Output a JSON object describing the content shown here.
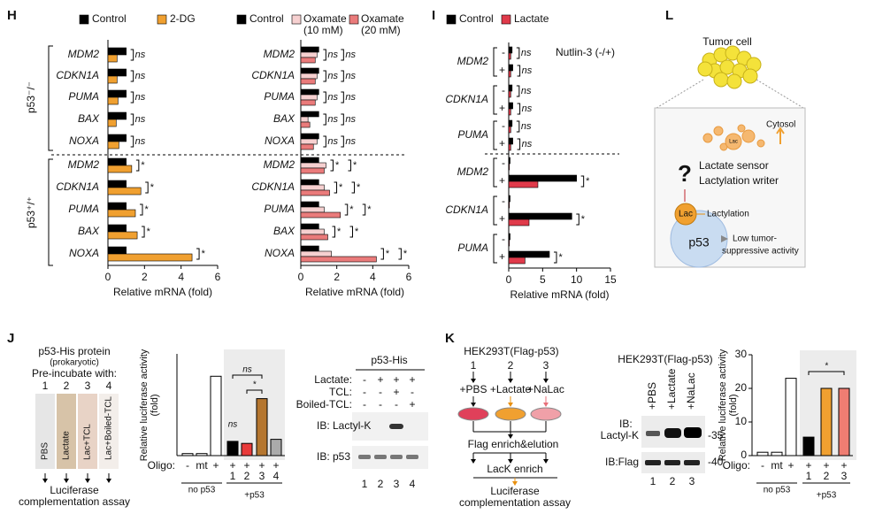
{
  "panel_labels": [
    "H",
    "I",
    "J",
    "K",
    "L"
  ],
  "chart_data": [
    {
      "type": "bar",
      "orientation": "horizontal",
      "xlabel": "Relative mRNA (fold)",
      "categories": [
        "MDM2",
        "CDKN1A",
        "PUMA",
        "BAX",
        "NOXA",
        "MDM2",
        "CDKN1A",
        "PUMA",
        "BAX",
        "NOXA"
      ],
      "groups": [
        "p53⁻/⁻",
        "p53⁺/⁺"
      ],
      "series": [
        {
          "name": "Control",
          "color": "#000000",
          "values": [
            1,
            1,
            1,
            1,
            1,
            1,
            1,
            1,
            1,
            1
          ]
        },
        {
          "name": "2-DG",
          "color": "#f0a030",
          "values": [
            0.5,
            0.5,
            0.55,
            0.45,
            0.6,
            1.3,
            1.8,
            1.5,
            1.6,
            4.6
          ]
        }
      ],
      "annotations": [
        "ns",
        "ns",
        "ns",
        "ns",
        "ns",
        "*",
        "*",
        "*",
        "*",
        "*"
      ],
      "xlim": [
        0,
        6
      ],
      "xticks": [
        0,
        2,
        4,
        6
      ]
    },
    {
      "type": "bar",
      "orientation": "horizontal",
      "xlabel": "Relative mRNA (fold)",
      "categories": [
        "MDM2",
        "CDKN1A",
        "PUMA",
        "BAX",
        "NOXA",
        "MDM2",
        "CDKN1A",
        "PUMA",
        "BAX",
        "NOXA"
      ],
      "series": [
        {
          "name": "Control",
          "color": "#000000",
          "values": [
            1,
            1,
            1,
            1,
            1,
            1,
            1,
            1,
            1,
            1
          ]
        },
        {
          "name": "Oxamate (10 mM)",
          "color": "#f6d0d0",
          "values": [
            0.9,
            0.9,
            0.9,
            0.4,
            0.9,
            1.4,
            1.3,
            1.3,
            1.3,
            1.7
          ]
        },
        {
          "name": "Oxamate (20 mM)",
          "color": "#ea7b7b",
          "values": [
            0.8,
            0.8,
            0.8,
            0.5,
            0.7,
            1.3,
            1.6,
            2.2,
            1.5,
            4.2
          ]
        }
      ],
      "annotations": [
        [
          "ns",
          "ns"
        ],
        [
          "ns",
          "ns"
        ],
        [
          "ns",
          "ns"
        ],
        [
          "ns",
          "ns"
        ],
        [
          "ns",
          "ns"
        ],
        [
          "*",
          "*"
        ],
        [
          "*",
          "*"
        ],
        [
          "*",
          "*"
        ],
        [
          "*",
          "*"
        ],
        [
          "*",
          "*"
        ]
      ],
      "xlim": [
        0,
        6
      ],
      "xticks": [
        0,
        2,
        4,
        6
      ]
    },
    {
      "type": "bar",
      "orientation": "horizontal",
      "xlabel": "Relative mRNA (fold)",
      "note": "Nutlin-3 (-/+)",
      "gene_labels": [
        "MDM2",
        "CDKN1A",
        "PUMA",
        "MDM2",
        "CDKN1A",
        "PUMA"
      ],
      "categories": [
        "-",
        "+",
        "-",
        "+",
        "-",
        "+",
        "-",
        "+",
        "-",
        "+",
        "-",
        "+"
      ],
      "series": [
        {
          "name": "Control",
          "color": "#000000",
          "values": [
            0.5,
            0.6,
            0.5,
            0.6,
            0.5,
            0.6,
            0.2,
            10,
            0.2,
            9.3,
            0.2,
            6
          ]
        },
        {
          "name": "Lactate",
          "color": "#e03a4a",
          "values": [
            0.3,
            0.3,
            0.3,
            0.3,
            0.3,
            0.3,
            0.1,
            4.3,
            0.1,
            3,
            0.1,
            2.4
          ]
        }
      ],
      "annotations": [
        "ns",
        "ns",
        "ns",
        "ns",
        "ns",
        "ns",
        null,
        "*",
        null,
        "*",
        null,
        "*"
      ],
      "xlim": [
        0,
        15
      ],
      "xticks": [
        0,
        5,
        10,
        15
      ]
    },
    {
      "type": "bar",
      "ylabel": "Relative luciferase activity (fold)",
      "category_title": "Oligo:",
      "categories": [
        "-",
        "mt",
        "+",
        "+",
        "+",
        "+",
        "+"
      ],
      "sample_labels": [
        "1",
        "2",
        "3",
        "4"
      ],
      "groups": [
        "no p53",
        "+p53"
      ],
      "values": [
        1,
        1,
        39,
        7,
        6,
        28,
        8
      ],
      "colors": [
        "#ffffff",
        "#ffffff",
        "#ffffff",
        "#000000",
        "#e83a3a",
        "#b5762f",
        "#aaaaaa"
      ],
      "annotations": [
        "ns",
        "*",
        "ns"
      ],
      "ylim": [
        0,
        50
      ]
    },
    {
      "type": "bar",
      "ylabel": "Relative luciferase activity (fold)",
      "category_title": "Oligo:",
      "categories": [
        "-",
        "mt",
        "+",
        "+",
        "+",
        "+"
      ],
      "sample_labels": [
        "1",
        "2",
        "3"
      ],
      "groups": [
        "no p53",
        "+p53"
      ],
      "values": [
        1,
        1,
        23,
        5.5,
        20,
        20
      ],
      "colors": [
        "#ffffff",
        "#ffffff",
        "#ffffff",
        "#000000",
        "#f0a030",
        "#ef7d72"
      ],
      "annotations": [
        "*"
      ],
      "ylim": [
        0,
        30
      ],
      "yticks": [
        0,
        10,
        20,
        30
      ]
    }
  ],
  "j_diagram": {
    "title": "p53-His protein",
    "subtitle": "(prokaryotic)",
    "preincubate": "Pre-incubate with:",
    "lanes": [
      "1",
      "2",
      "3",
      "4"
    ],
    "conditions": [
      "PBS",
      "Lactate",
      "Lac+TCL",
      "Lac+Boiled-TCL"
    ],
    "assay": [
      "Luciferase",
      "complementation assay"
    ]
  },
  "j_blot": {
    "header": "p53-His",
    "rows": [
      {
        "label": "Lactate:",
        "signs": [
          "-",
          "+",
          "+",
          "+"
        ]
      },
      {
        "label": "TCL:",
        "signs": [
          "-",
          "-",
          "+",
          "-"
        ]
      },
      {
        "label": "Boiled-TCL:",
        "signs": [
          "-",
          "-",
          "-",
          "+"
        ]
      }
    ],
    "blots": [
      "IB: Lactyl-K",
      "IB: p53"
    ],
    "lanes": [
      "1",
      "2",
      "3",
      "4"
    ]
  },
  "k_diagram": {
    "title": "HEK293T(Flag-p53)",
    "lanes": [
      "1",
      "2",
      "3"
    ],
    "treatments": [
      "+PBS",
      "+Lactate",
      "+NaLac"
    ],
    "steps": [
      "Flag enrich&elution",
      "LacK enrich"
    ],
    "assay": [
      "Luciferase",
      "complementation assay"
    ]
  },
  "k_blot": {
    "title": "HEK293T(Flag-p53)",
    "treatments": [
      "+PBS",
      "+Lactate",
      "+NaLac"
    ],
    "blots": [
      {
        "label": [
          "IB:",
          "Lactyl-K"
        ],
        "marker": "-35"
      },
      {
        "label": [
          "IB:Flag"
        ],
        "marker": "-40"
      }
    ],
    "lanes": [
      "1",
      "2",
      "3"
    ]
  },
  "l_diagram": {
    "title": "Tumor cell",
    "cytosol": "Cytosol",
    "lac": "Lac",
    "question": "?",
    "sensor": "Lactate sensor",
    "writer": "Lactylation writer",
    "modification": "Lactylation",
    "protein": "p53",
    "outcome": [
      "Low tumor-",
      "suppressive activity"
    ]
  }
}
